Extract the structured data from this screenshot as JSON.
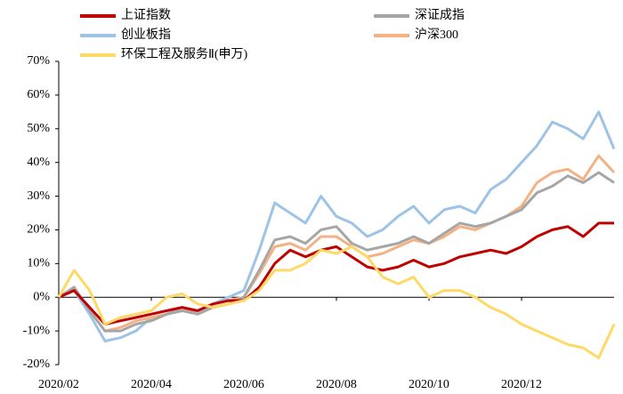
{
  "chart_data": {
    "type": "line",
    "categories": [
      "2020/02",
      null,
      null,
      null,
      null,
      null,
      "2020/04",
      null,
      null,
      null,
      null,
      null,
      "2020/06",
      null,
      null,
      null,
      null,
      null,
      "2020/08",
      null,
      null,
      null,
      null,
      null,
      "2020/10",
      null,
      null,
      null,
      null,
      null,
      "2020/12",
      null,
      null,
      null,
      null,
      null,
      null
    ],
    "series": [
      {
        "name": "上证指数",
        "color": "#c00000",
        "values": [
          0,
          2,
          -3,
          -8,
          -7,
          -6,
          -5,
          -4,
          -3,
          -4,
          -2,
          -1,
          -1,
          3,
          10,
          14,
          12,
          14,
          15,
          12,
          9,
          8,
          9,
          11,
          9,
          10,
          12,
          13,
          14,
          13,
          15,
          18,
          20,
          21,
          18,
          22,
          22
        ]
      },
      {
        "name": "深证成指",
        "color": "#a6a6a6",
        "values": [
          0,
          3,
          -4,
          -10,
          -10,
          -8,
          -7,
          -5,
          -4,
          -5,
          -3,
          -2,
          0,
          8,
          17,
          18,
          16,
          20,
          21,
          16,
          14,
          15,
          16,
          18,
          16,
          19,
          22,
          21,
          22,
          24,
          26,
          31,
          33,
          36,
          34,
          37,
          34
        ]
      },
      {
        "name": "创业板指",
        "color": "#9dc3e6",
        "values": [
          0,
          2,
          -5,
          -13,
          -12,
          -10,
          -6,
          -5,
          -3,
          -5,
          -2,
          0,
          2,
          14,
          28,
          25,
          22,
          30,
          24,
          22,
          18,
          20,
          24,
          27,
          22,
          26,
          27,
          25,
          32,
          35,
          40,
          45,
          52,
          50,
          47,
          55,
          44
        ]
      },
      {
        "name": "沪深300",
        "color": "#f4b183",
        "values": [
          0,
          3,
          -4,
          -10,
          -9,
          -7,
          -6,
          -5,
          -4,
          -4,
          -2,
          -1,
          0,
          7,
          15,
          16,
          14,
          18,
          18,
          15,
          12,
          13,
          15,
          17,
          16,
          18,
          21,
          20,
          22,
          24,
          27,
          34,
          37,
          38,
          35,
          42,
          37
        ]
      },
      {
        "name": "环保工程及服务Ⅱ(申万)",
        "color": "#ffd966",
        "values": [
          0,
          8,
          2,
          -8,
          -6,
          -5,
          -4,
          0,
          1,
          -2,
          -3,
          -2,
          -1,
          2,
          8,
          8,
          10,
          14,
          13,
          15,
          12,
          6,
          4,
          6,
          0,
          2,
          2,
          0,
          -3,
          -5,
          -8,
          -10,
          -12,
          -14,
          -15,
          -18,
          -8
        ]
      }
    ],
    "ylim": [
      -20,
      70
    ],
    "yticks": [
      {
        "value": -20,
        "label": "-20%"
      },
      {
        "value": -10,
        "label": "-10%"
      },
      {
        "value": 0,
        "label": "0%"
      },
      {
        "value": 10,
        "label": "10%"
      },
      {
        "value": 20,
        "label": "20%"
      },
      {
        "value": 30,
        "label": "30%"
      },
      {
        "value": 40,
        "label": "40%"
      },
      {
        "value": 50,
        "label": "50%"
      },
      {
        "value": 60,
        "label": "60%"
      },
      {
        "value": 70,
        "label": "70%"
      }
    ],
    "grid": false
  }
}
